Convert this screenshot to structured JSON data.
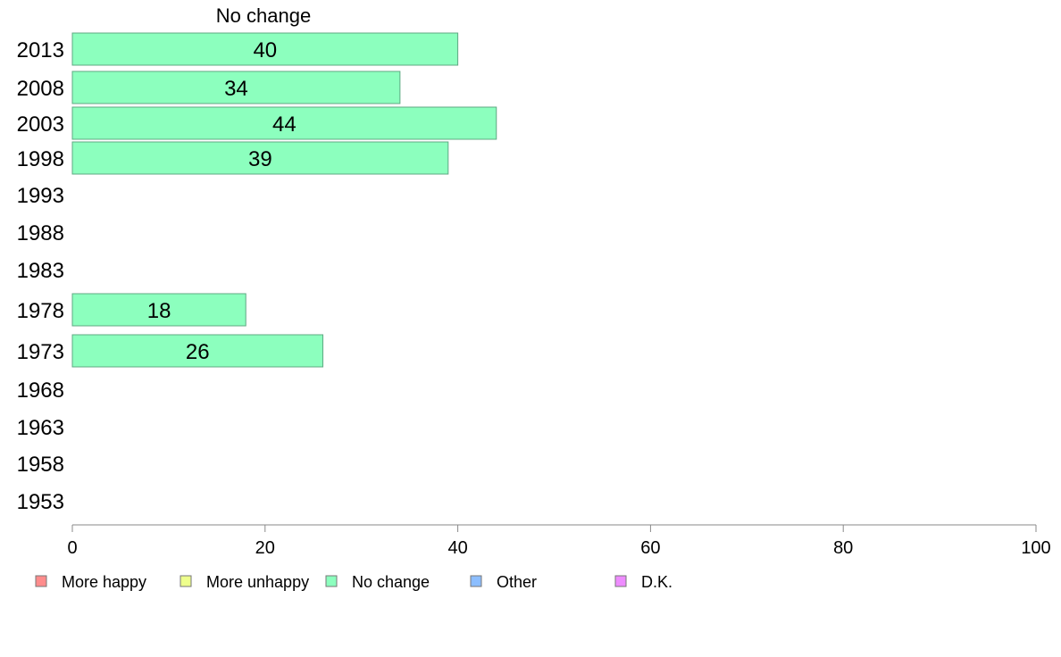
{
  "colors": {
    "more_happy": "#ff8c8c",
    "more_unhappy": "#eeff8c",
    "no_change": "#8cffbe",
    "other": "#8cbeff",
    "dk": "#ee8cff",
    "bar_stroke": "#5fa883",
    "axis": "#888888"
  },
  "chart_data": {
    "type": "bar",
    "orientation": "horizontal",
    "panel_title": "No change",
    "categories": [
      "2013",
      "2008",
      "2003",
      "1998",
      "1993",
      "1988",
      "1983",
      "1978",
      "1973",
      "1968",
      "1963",
      "1958",
      "1953"
    ],
    "series": [
      {
        "name": "No change",
        "color_key": "no_change",
        "values": [
          40,
          34,
          44,
          39,
          null,
          null,
          null,
          18,
          26,
          null,
          null,
          null,
          null
        ]
      }
    ],
    "xlim": [
      0,
      100
    ],
    "xticks": [
      0,
      20,
      40,
      60,
      80,
      100
    ],
    "grid": false,
    "legend_position": "bottom",
    "legend": [
      {
        "label": "More happy",
        "color_key": "more_happy"
      },
      {
        "label": "More unhappy",
        "color_key": "more_unhappy"
      },
      {
        "label": "No change",
        "color_key": "no_change"
      },
      {
        "label": "Other",
        "color_key": "other"
      },
      {
        "label": "D.K.",
        "color_key": "dk"
      }
    ]
  }
}
